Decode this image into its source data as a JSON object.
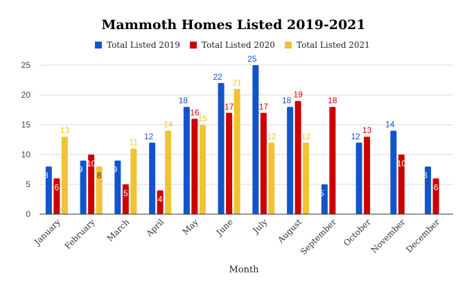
{
  "chart_data": {
    "type": "bar",
    "title": "Mammoth Homes Listed 2019-2021",
    "xlabel": "Month",
    "ylabel": "",
    "ylim": [
      0,
      25
    ],
    "yticks": [
      0,
      5,
      10,
      15,
      20,
      25
    ],
    "grid": true,
    "legend_position": "top",
    "categories": [
      "January",
      "February",
      "March",
      "April",
      "May",
      "June",
      "July",
      "August",
      "September",
      "October",
      "November",
      "December"
    ],
    "series": [
      {
        "name": "Total Listed 2019",
        "color": "#1155cc",
        "values": [
          8,
          9,
          9,
          12,
          18,
          22,
          25,
          18,
          5,
          12,
          14,
          8
        ]
      },
      {
        "name": "Total Listed 2020",
        "color": "#cc0000",
        "values": [
          6,
          10,
          5,
          4,
          16,
          17,
          17,
          19,
          18,
          13,
          10,
          6
        ]
      },
      {
        "name": "Total Listed 2021",
        "color": "#f1c232",
        "values": [
          13,
          8,
          11,
          14,
          15,
          21,
          12,
          12,
          null,
          null,
          null,
          null
        ]
      }
    ]
  }
}
